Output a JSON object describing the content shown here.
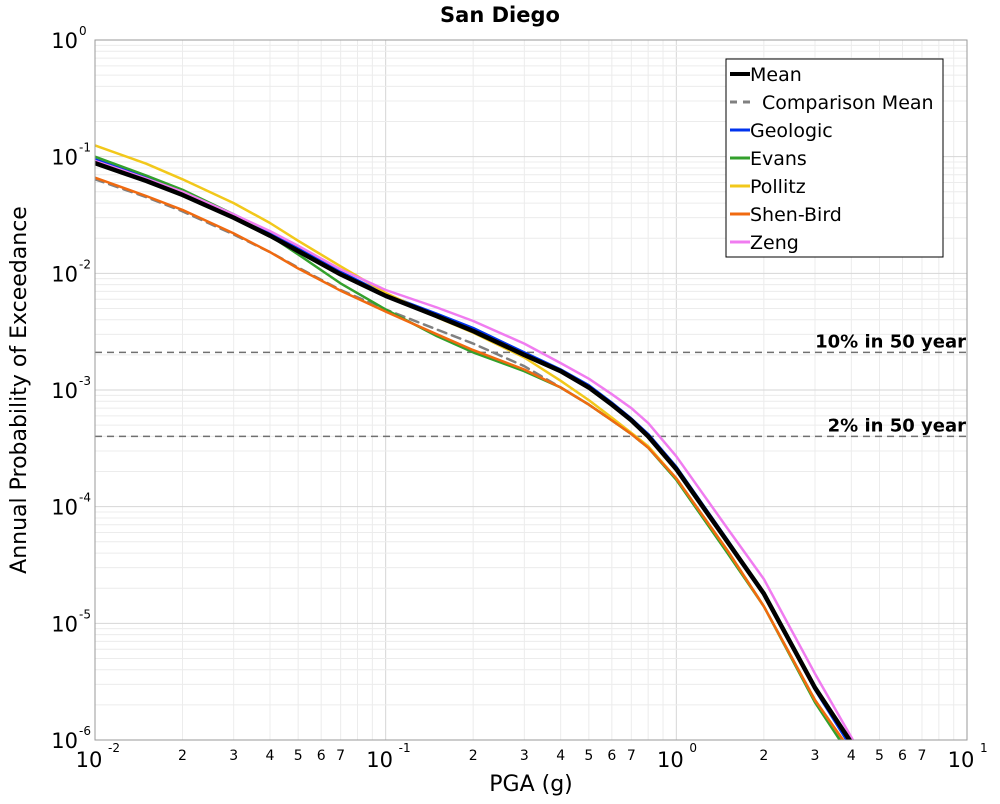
{
  "chart_data": {
    "type": "line",
    "title": "San Diego",
    "xlabel": "PGA (g)",
    "ylabel": "Annual Probability of Exceedance",
    "xscale": "log",
    "yscale": "log",
    "xlim": [
      0.01,
      10
    ],
    "ylim": [
      1e-06,
      1
    ],
    "grid": true,
    "legend_position": "top-right",
    "x_major_ticks": [
      {
        "base": "10",
        "exp": "-2"
      },
      {
        "base": "10",
        "exp": "-1"
      },
      {
        "base": "10",
        "exp": "0"
      },
      {
        "base": "10",
        "exp": "1"
      }
    ],
    "x_minor_tick_labels": [
      "2",
      "3",
      "4",
      "5",
      "6",
      "7"
    ],
    "y_major_ticks": [
      {
        "base": "10",
        "exp": "0"
      },
      {
        "base": "10",
        "exp": "-1"
      },
      {
        "base": "10",
        "exp": "-2"
      },
      {
        "base": "10",
        "exp": "-3"
      },
      {
        "base": "10",
        "exp": "-4"
      },
      {
        "base": "10",
        "exp": "-5"
      },
      {
        "base": "10",
        "exp": "-6"
      }
    ],
    "reference_lines": [
      {
        "label": "10% in 50 year",
        "y": 0.0021
      },
      {
        "label": "2% in 50 year",
        "y": 0.0004
      }
    ],
    "series": [
      {
        "name": "Mean",
        "color": "#000000",
        "style": "solid",
        "weight": "heavy",
        "x": [
          0.01,
          0.015,
          0.02,
          0.03,
          0.04,
          0.05,
          0.07,
          0.1,
          0.15,
          0.2,
          0.3,
          0.4,
          0.5,
          0.6,
          0.7,
          0.8,
          1.0,
          1.5,
          2.0,
          3.0,
          4.0
        ],
        "y": [
          0.088,
          0.062,
          0.047,
          0.03,
          0.021,
          0.0155,
          0.0098,
          0.0064,
          0.0043,
          0.0032,
          0.002,
          0.00145,
          0.00105,
          0.00075,
          0.00055,
          0.0004,
          0.00021,
          5e-05,
          1.8e-05,
          2.8e-06,
          9.5e-07
        ]
      },
      {
        "name": "Comparison Mean",
        "color": "#808080",
        "style": "dashed",
        "weight": "normal",
        "x": [
          0.01,
          0.015,
          0.02,
          0.03,
          0.04,
          0.05,
          0.07,
          0.1,
          0.15,
          0.2,
          0.3,
          0.4,
          0.5,
          0.6,
          0.7,
          0.8,
          1.0,
          1.5,
          2.0,
          3.0,
          3.8
        ],
        "y": [
          0.064,
          0.045,
          0.034,
          0.0215,
          0.0152,
          0.0112,
          0.0072,
          0.0049,
          0.0033,
          0.0025,
          0.0016,
          0.00105,
          0.00075,
          0.00055,
          0.00042,
          0.00032,
          0.000175,
          4.2e-05,
          1.4e-05,
          2.2e-06,
          9e-07
        ]
      },
      {
        "name": "Geologic",
        "color": "#0033ee",
        "style": "solid",
        "weight": "normal",
        "x": [
          0.01,
          0.015,
          0.02,
          0.03,
          0.04,
          0.05,
          0.07,
          0.1,
          0.15,
          0.2,
          0.3,
          0.4,
          0.5,
          0.6,
          0.7,
          0.8,
          1.0,
          1.5,
          2.0,
          3.0,
          3.9
        ],
        "y": [
          0.095,
          0.066,
          0.05,
          0.032,
          0.0225,
          0.0165,
          0.0103,
          0.0066,
          0.0045,
          0.0034,
          0.0021,
          0.0015,
          0.0011,
          0.00078,
          0.00057,
          0.00042,
          0.00022,
          5.2e-05,
          1.8e-05,
          2.7e-06,
          9.5e-07
        ]
      },
      {
        "name": "Evans",
        "color": "#33a02c",
        "style": "solid",
        "weight": "normal",
        "x": [
          0.01,
          0.015,
          0.02,
          0.03,
          0.04,
          0.05,
          0.07,
          0.1,
          0.15,
          0.2,
          0.3,
          0.4,
          0.5,
          0.6,
          0.7,
          0.8,
          1.0,
          1.5,
          2.0,
          3.0,
          3.7
        ],
        "y": [
          0.1,
          0.069,
          0.052,
          0.032,
          0.021,
          0.0145,
          0.0082,
          0.0049,
          0.0029,
          0.0021,
          0.00145,
          0.00105,
          0.00075,
          0.00055,
          0.00042,
          0.00032,
          0.00017,
          4e-05,
          1.4e-05,
          2.1e-06,
          9.5e-07
        ]
      },
      {
        "name": "Pollitz",
        "color": "#f2c81b",
        "style": "solid",
        "weight": "normal",
        "x": [
          0.01,
          0.015,
          0.02,
          0.03,
          0.04,
          0.05,
          0.07,
          0.1,
          0.15,
          0.2,
          0.3,
          0.4,
          0.5,
          0.6,
          0.7,
          0.8,
          1.0,
          1.5,
          2.0,
          3.0,
          3.8
        ],
        "y": [
          0.125,
          0.087,
          0.064,
          0.04,
          0.027,
          0.019,
          0.0115,
          0.0068,
          0.0042,
          0.0031,
          0.0019,
          0.0012,
          0.00082,
          0.00058,
          0.00043,
          0.00033,
          0.000175,
          4.2e-05,
          1.4e-05,
          2.2e-06,
          9.5e-07
        ]
      },
      {
        "name": "Shen-Bird",
        "color": "#f06a10",
        "style": "solid",
        "weight": "normal",
        "x": [
          0.01,
          0.015,
          0.02,
          0.03,
          0.04,
          0.05,
          0.07,
          0.1,
          0.15,
          0.2,
          0.3,
          0.4,
          0.5,
          0.6,
          0.7,
          0.8,
          1.0,
          1.5,
          2.0,
          3.0,
          3.8
        ],
        "y": [
          0.066,
          0.046,
          0.035,
          0.022,
          0.0152,
          0.011,
          0.0071,
          0.0047,
          0.003,
          0.0022,
          0.0015,
          0.00105,
          0.00075,
          0.00055,
          0.00042,
          0.00032,
          0.000175,
          4.2e-05,
          1.4e-05,
          2.2e-06,
          9.5e-07
        ]
      },
      {
        "name": "Zeng",
        "color": "#f07cf0",
        "style": "solid",
        "weight": "normal",
        "x": [
          0.01,
          0.015,
          0.02,
          0.03,
          0.04,
          0.05,
          0.07,
          0.1,
          0.15,
          0.2,
          0.3,
          0.4,
          0.5,
          0.6,
          0.7,
          0.8,
          1.0,
          1.5,
          2.0,
          3.0,
          4.1
        ],
        "y": [
          0.092,
          0.065,
          0.05,
          0.032,
          0.023,
          0.0172,
          0.0108,
          0.0072,
          0.0051,
          0.0039,
          0.0025,
          0.0017,
          0.00125,
          0.00092,
          0.0007,
          0.00052,
          0.00027,
          6.5e-05,
          2.4e-05,
          3.7e-06,
          9.5e-07
        ]
      }
    ]
  }
}
